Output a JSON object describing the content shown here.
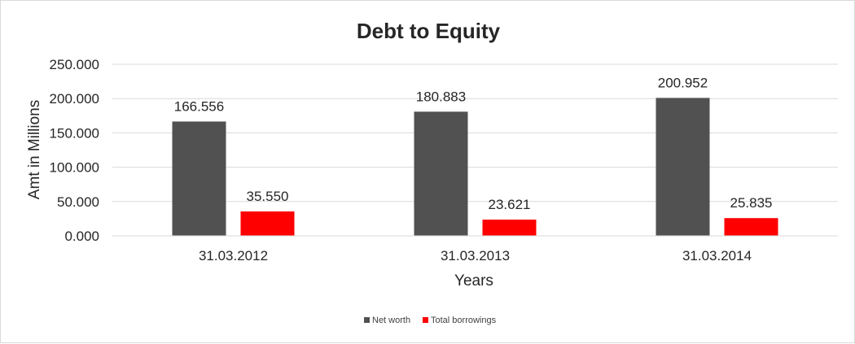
{
  "chart_data": {
    "type": "bar",
    "title": "Debt to Equity",
    "xlabel": "Years",
    "ylabel": "Amt in Millions",
    "categories": [
      "31.03.2012",
      "31.03.2013",
      "31.03.2014"
    ],
    "series": [
      {
        "name": "Net worth",
        "color": "#515151",
        "values": [
          166.556,
          180.883,
          200.952
        ],
        "labels": [
          "166.556",
          "180.883",
          "200.952"
        ]
      },
      {
        "name": "Total borrowings",
        "color": "#ff0000",
        "values": [
          35.55,
          23.621,
          25.835
        ],
        "labels": [
          "35.550",
          "23.621",
          "25.835"
        ]
      }
    ],
    "ylim": [
      0,
      250
    ],
    "yticks": [
      0,
      50,
      100,
      150,
      200,
      250
    ],
    "ytick_labels": [
      "0.000",
      "50.000",
      "100.000",
      "150.000",
      "200.000",
      "250.000"
    ],
    "grid": true,
    "legend_position": "bottom"
  }
}
